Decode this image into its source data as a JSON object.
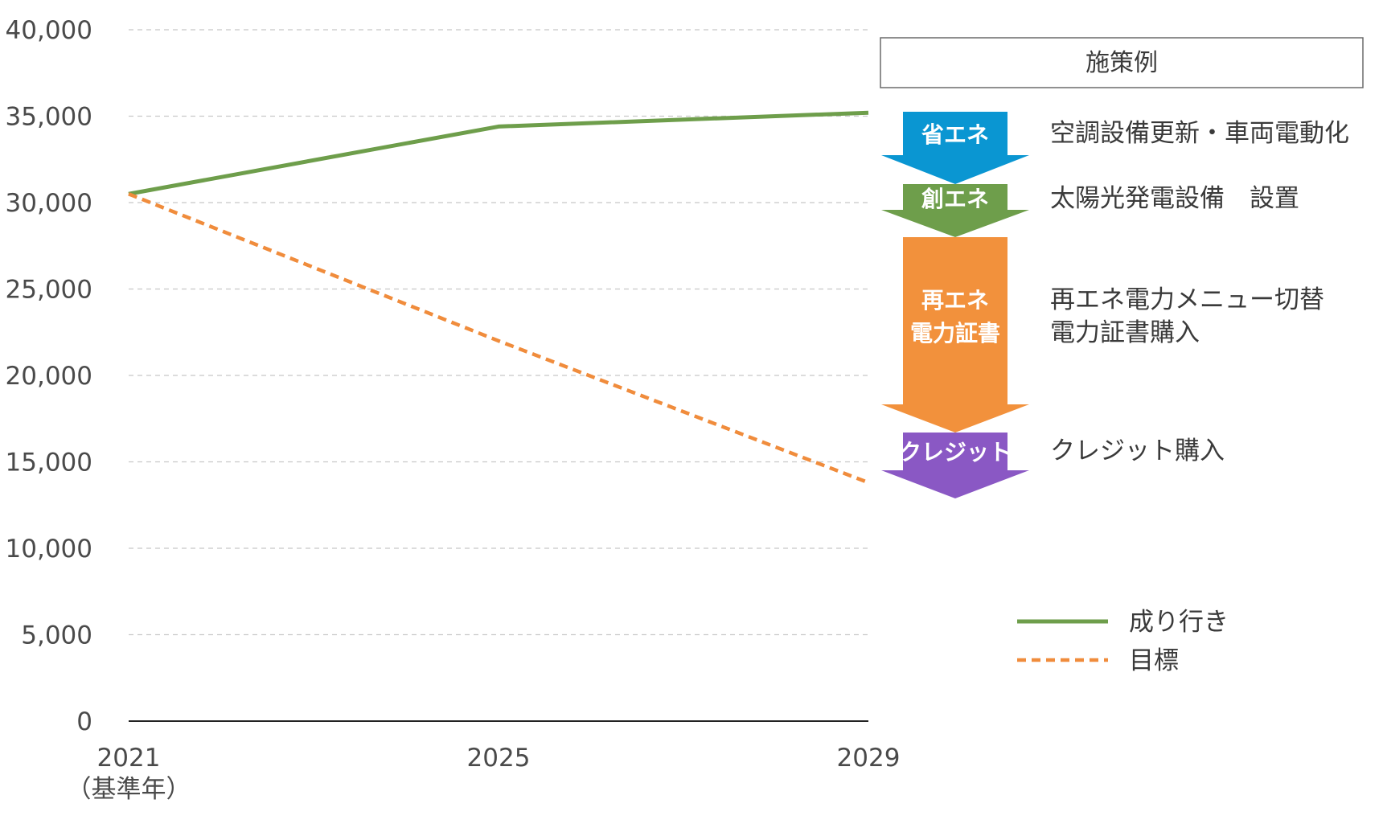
{
  "chart_data": {
    "type": "line",
    "x": [
      "2021",
      "2025",
      "2029"
    ],
    "x_sublabel_first": "（基準年）",
    "yticks": [
      "0",
      "5,000",
      "10,000",
      "15,000",
      "20,000",
      "25,000",
      "30,000",
      "35,000",
      "40,000"
    ],
    "ylim": [
      0,
      40000
    ],
    "grid": true,
    "series": [
      {
        "name": "成り行き",
        "values": [
          30500,
          34400,
          35200
        ],
        "color": "#6e9e4b",
        "style": "solid"
      },
      {
        "name": "目標",
        "values": [
          30500,
          22000,
          13800
        ],
        "color": "#f08c3c",
        "style": "dashed"
      }
    ],
    "legend_position": "bottom-right"
  },
  "measures": {
    "box_title": "施策例",
    "arrows": [
      {
        "label": "省エネ",
        "color": "#0a96d2",
        "description": [
          "空調設備更新・車両電動化"
        ]
      },
      {
        "label": "創エネ",
        "color": "#6e9e4b",
        "description": [
          "太陽光発電設備　設置"
        ]
      },
      {
        "label": "再エネ\n電力証書",
        "color": "#f2913c",
        "description": [
          "再エネ電力メニュー切替",
          "電力証書購入"
        ]
      },
      {
        "label": "クレジット",
        "color": "#8a58c4",
        "description": [
          "クレジット購入"
        ]
      }
    ]
  }
}
